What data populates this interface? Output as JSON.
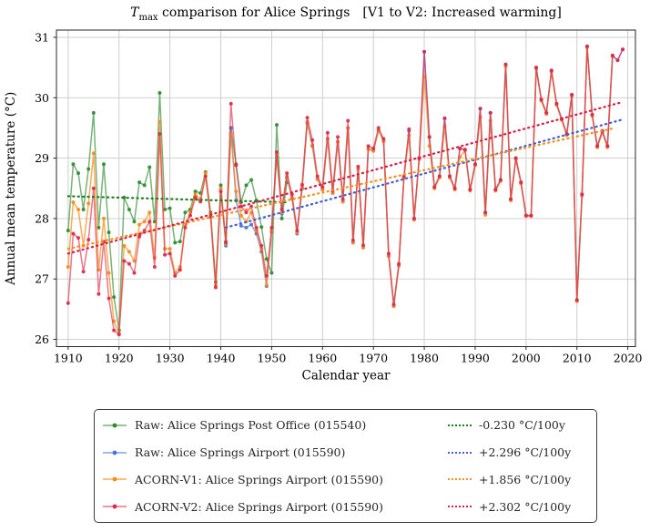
{
  "title": {
    "t": "T",
    "sub": "max",
    "main": " comparison for Alice Springs",
    "bracket": "[V1 to V2: Increased warming]"
  },
  "legend": {
    "entries": [
      {
        "label": "Raw: Alice Springs Post Office (015540)",
        "trend_label": "-0.230 °C/100y"
      },
      {
        "label": "Raw: Alice Springs Airport (015590)",
        "trend_label": "+2.296 °C/100y"
      },
      {
        "label": "ACORN-V1: Alice Springs Airport (015590)",
        "trend_label": "+1.856 °C/100y"
      },
      {
        "label": "ACORN-V2: Alice Springs Airport (015590)",
        "trend_label": "+2.302 °C/100y"
      }
    ]
  },
  "chart_data": {
    "type": "line",
    "title": "Tmax comparison for Alice Springs [V1 to V2: Increased warming]",
    "xlabel": "Calendar year",
    "ylabel": "Annual mean temperature (°C)",
    "xlim": [
      1907.7,
      2021.5
    ],
    "ylim": [
      25.88,
      31.12
    ],
    "xticks": [
      1910,
      1920,
      1930,
      1940,
      1950,
      1960,
      1970,
      1980,
      1990,
      2000,
      2010,
      2020
    ],
    "yticks": [
      26,
      27,
      28,
      29,
      30,
      31
    ],
    "grid": true,
    "grid_color": "#c9c9c9",
    "x_start": 1910,
    "series": [
      {
        "name": "Raw: Alice Springs Post Office (015540)",
        "line_color": "#3d9140",
        "marker_color": "#2f8b2f",
        "line_opacity": 0.7,
        "values": [
          27.8,
          28.9,
          28.75,
          28.15,
          28.82,
          29.75,
          27.85,
          28.9,
          27.77,
          26.7,
          26.15,
          28.35,
          28.15,
          27.95,
          28.6,
          28.55,
          28.85,
          27.95,
          30.08,
          28.15,
          28.17,
          27.6,
          27.62,
          28.1,
          28.15,
          28.45,
          28.42,
          28.77,
          28.1,
          26.95,
          28.55,
          27.62,
          29.5,
          28.9,
          28.27,
          28.55,
          28.64,
          28.3,
          27.86,
          27.33,
          27.1,
          29.55,
          28.0,
          28.6,
          null,
          null,
          null,
          null,
          null,
          null,
          null,
          null,
          null,
          null,
          null,
          null,
          null,
          null,
          null,
          null,
          null,
          null,
          null,
          null,
          null,
          null,
          null,
          null,
          null,
          null,
          null,
          null,
          null,
          null,
          null,
          null,
          null,
          null,
          null,
          null,
          null,
          null,
          null,
          null,
          null,
          null,
          null,
          null,
          null,
          null,
          null,
          null,
          null,
          null,
          null,
          null,
          null,
          null,
          null,
          null,
          null,
          null,
          null,
          null,
          null,
          null,
          null,
          null,
          null,
          null
        ]
      },
      {
        "name": "Raw: Alice Springs Airport (015590)",
        "line_color": "#4a6fd4",
        "marker_color": "#4e73d6",
        "line_opacity": 0.65,
        "values": [
          null,
          null,
          null,
          null,
          null,
          null,
          null,
          null,
          null,
          null,
          null,
          null,
          null,
          null,
          null,
          null,
          null,
          null,
          null,
          null,
          null,
          null,
          null,
          null,
          null,
          null,
          null,
          null,
          null,
          null,
          null,
          27.55,
          29.5,
          28.3,
          27.88,
          27.85,
          27.9,
          27.75,
          27.45,
          26.88,
          27.78,
          29.03,
          28.08,
          28.68,
          28.33,
          27.75,
          28.5,
          29.58,
          29.2,
          28.65,
          28.48,
          29.32,
          28.42,
          29.27,
          28.28,
          29.5,
          27.6,
          28.82,
          27.52,
          29.15,
          29.12,
          29.46,
          29.28,
          27.38,
          26.55,
          27.22,
          28.68,
          29.45,
          28.0,
          29.0,
          30.76,
          29.35,
          28.52,
          28.7,
          29.66,
          28.7,
          28.5,
          29.16,
          29.14,
          28.48,
          28.9,
          29.82,
          28.1,
          29.75,
          28.48,
          28.64,
          30.55,
          28.32,
          29.0,
          28.6,
          28.05,
          28.05,
          30.5,
          29.97,
          29.75,
          30.45,
          29.9,
          29.65,
          29.4,
          30.05,
          26.65,
          28.4,
          30.85,
          29.72,
          29.2,
          29.45,
          29.2,
          30.7,
          30.62,
          30.8
        ]
      },
      {
        "name": "ACORN-V1: Alice Springs Airport (015590)",
        "line_color": "#f78f1e",
        "marker_color": "#f78b17",
        "line_opacity": 0.75,
        "values": [
          27.2,
          28.27,
          28.15,
          27.55,
          28.25,
          29.08,
          27.15,
          28.0,
          27.1,
          26.3,
          26.1,
          27.55,
          27.45,
          27.3,
          27.9,
          27.95,
          28.1,
          27.35,
          29.6,
          27.5,
          27.5,
          27.1,
          27.2,
          27.9,
          28.1,
          28.4,
          28.32,
          28.75,
          28.06,
          26.9,
          28.5,
          27.58,
          29.4,
          28.45,
          28.05,
          27.95,
          28.1,
          27.8,
          27.5,
          26.9,
          27.8,
          29.05,
          28.1,
          28.7,
          28.35,
          27.77,
          28.52,
          29.6,
          29.22,
          28.65,
          28.48,
          29.32,
          28.42,
          29.27,
          28.28,
          29.5,
          27.6,
          28.82,
          27.52,
          29.15,
          29.12,
          29.46,
          29.28,
          27.38,
          26.55,
          27.22,
          28.68,
          29.38,
          27.98,
          28.98,
          30.35,
          29.2,
          28.5,
          28.68,
          29.52,
          28.68,
          28.48,
          29.02,
          29.12,
          28.46,
          28.88,
          29.68,
          28.06,
          29.62,
          28.46,
          28.62,
          30.52,
          28.3,
          28.98,
          28.58,
          28.04,
          28.04,
          30.48,
          29.95,
          29.73,
          30.43,
          29.88,
          29.63,
          29.38,
          30.03,
          26.63,
          28.38,
          30.83,
          29.7,
          29.18,
          29.42,
          29.18,
          30.68,
          null,
          null
        ]
      },
      {
        "name": "ACORN-V2: Alice Springs Airport (015590)",
        "line_color": "#dc2e4e",
        "marker_color": "#dc2a50",
        "line_opacity": 0.65,
        "values": [
          26.6,
          27.75,
          27.68,
          27.12,
          27.65,
          28.5,
          26.75,
          27.62,
          26.68,
          26.15,
          26.08,
          27.3,
          27.25,
          27.1,
          27.7,
          27.8,
          27.95,
          27.2,
          29.4,
          27.4,
          27.42,
          27.05,
          27.15,
          27.85,
          28.05,
          28.35,
          28.28,
          28.7,
          28.03,
          26.86,
          28.45,
          27.6,
          29.9,
          28.88,
          28.2,
          28.1,
          28.2,
          27.85,
          27.55,
          27.05,
          27.85,
          29.1,
          28.15,
          28.75,
          28.4,
          27.8,
          28.56,
          29.67,
          29.3,
          28.7,
          28.52,
          29.42,
          28.46,
          29.35,
          28.32,
          29.62,
          27.64,
          28.86,
          27.56,
          29.2,
          29.16,
          29.5,
          29.32,
          27.42,
          26.58,
          27.25,
          28.7,
          29.48,
          28.0,
          29.0,
          30.76,
          29.35,
          28.52,
          28.7,
          29.66,
          28.7,
          28.5,
          29.16,
          29.14,
          28.48,
          28.9,
          29.82,
          28.1,
          29.75,
          28.48,
          28.64,
          30.55,
          28.32,
          29.0,
          28.6,
          28.05,
          28.05,
          30.5,
          29.97,
          29.75,
          30.45,
          29.9,
          29.65,
          29.4,
          30.05,
          26.65,
          28.4,
          30.85,
          29.72,
          29.2,
          29.45,
          29.2,
          30.7,
          30.62,
          30.8
        ]
      }
    ],
    "trends": [
      {
        "name": "-0.230 °C/100y",
        "color": "#1e7d1e",
        "x1": 1910,
        "y1": 28.37,
        "x2": 1953,
        "y2": 28.27
      },
      {
        "name": "+2.296 °C/100y",
        "color": "#3d5fd0",
        "x1": 1941,
        "y1": 27.85,
        "x2": 2019,
        "y2": 29.64
      },
      {
        "name": "+1.856 °C/100y",
        "color": "#f78f1e",
        "x1": 1910,
        "y1": 27.5,
        "x2": 2017,
        "y2": 29.49
      },
      {
        "name": "+2.302 °C/100y",
        "color": "#d42045",
        "x1": 1910,
        "y1": 27.42,
        "x2": 2019,
        "y2": 29.93
      }
    ],
    "legend_position": "lower center (below axes)"
  }
}
